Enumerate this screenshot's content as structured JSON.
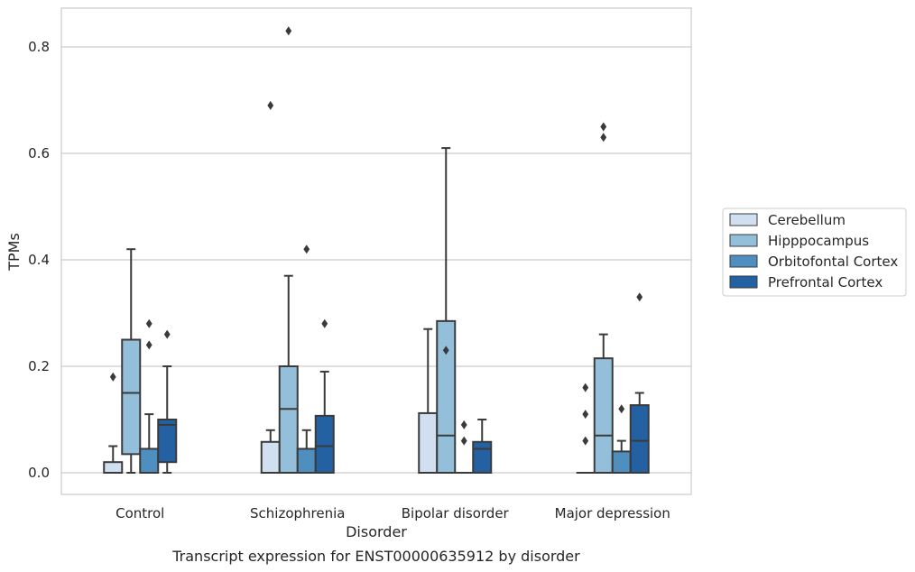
{
  "chart_data": {
    "type": "box",
    "caption": "Transcript expression for ENST00000635912 by disorder",
    "xlabel": "Disorder",
    "ylabel": "TPMs",
    "ylim": [
      -0.04,
      0.875
    ],
    "yticks": [
      0.0,
      0.2,
      0.4,
      0.6,
      0.8
    ],
    "ytick_labels": [
      "0.0",
      "0.2",
      "0.4",
      "0.6",
      "0.8"
    ],
    "grid": "horizontal",
    "legend_position": "right",
    "categories": [
      "Control",
      "Schizophrenia",
      "Bipolar disorder",
      "Major depression"
    ],
    "series": [
      {
        "name": "Cerebellum",
        "color": "#d1e0f0",
        "boxes": [
          {
            "whislo": 0.0,
            "q1": 0.0,
            "med": 0.0,
            "q3": 0.02,
            "whishi": 0.05,
            "fliers": [
              0.18
            ]
          },
          {
            "whislo": 0.0,
            "q1": 0.0,
            "med": 0.0,
            "q3": 0.058,
            "whishi": 0.08,
            "fliers": [
              0.69
            ]
          },
          {
            "whislo": 0.0,
            "q1": 0.0,
            "med": 0.0,
            "q3": 0.112,
            "whishi": 0.27,
            "fliers": []
          },
          {
            "whislo": 0.0,
            "q1": 0.0,
            "med": 0.0,
            "q3": 0.0,
            "whishi": 0.0,
            "fliers": [
              0.16,
              0.11,
              0.06
            ]
          }
        ]
      },
      {
        "name": "Hipppocampus",
        "color": "#94bfdb",
        "boxes": [
          {
            "whislo": 0.0,
            "q1": 0.035,
            "med": 0.15,
            "q3": 0.25,
            "whishi": 0.42,
            "fliers": []
          },
          {
            "whislo": 0.0,
            "q1": 0.0,
            "med": 0.12,
            "q3": 0.2,
            "whishi": 0.37,
            "fliers": [
              0.83
            ]
          },
          {
            "whislo": 0.0,
            "q1": 0.0,
            "med": 0.07,
            "q3": 0.285,
            "whishi": 0.61,
            "fliers": [
              0.23
            ]
          },
          {
            "whislo": 0.0,
            "q1": 0.0,
            "med": 0.07,
            "q3": 0.215,
            "whishi": 0.26,
            "fliers": [
              0.65,
              0.63
            ]
          }
        ]
      },
      {
        "name": "Orbitofontal Cortex",
        "color": "#4e8fc0",
        "boxes": [
          {
            "whislo": 0.0,
            "q1": 0.0,
            "med": 0.0,
            "q3": 0.045,
            "whishi": 0.11,
            "fliers": [
              0.28,
              0.24
            ]
          },
          {
            "whislo": 0.0,
            "q1": 0.0,
            "med": 0.0,
            "q3": 0.045,
            "whishi": 0.08,
            "fliers": [
              0.42
            ]
          },
          {
            "whislo": 0.0,
            "q1": 0.0,
            "med": 0.0,
            "q3": 0.0,
            "whishi": 0.0,
            "fliers": [
              0.09,
              0.06
            ]
          },
          {
            "whislo": 0.0,
            "q1": 0.0,
            "med": 0.0,
            "q3": 0.04,
            "whishi": 0.06,
            "fliers": [
              0.12
            ]
          }
        ]
      },
      {
        "name": "Prefrontal Cortex",
        "color": "#2461a3",
        "boxes": [
          {
            "whislo": 0.0,
            "q1": 0.02,
            "med": 0.09,
            "q3": 0.1,
            "whishi": 0.2,
            "fliers": [
              0.26
            ]
          },
          {
            "whislo": 0.0,
            "q1": 0.0,
            "med": 0.05,
            "q3": 0.107,
            "whishi": 0.19,
            "fliers": [
              0.28
            ]
          },
          {
            "whislo": 0.0,
            "q1": 0.0,
            "med": 0.045,
            "q3": 0.058,
            "whishi": 0.1,
            "fliers": []
          },
          {
            "whislo": 0.0,
            "q1": 0.0,
            "med": 0.06,
            "q3": 0.127,
            "whishi": 0.15,
            "fliers": [
              0.33
            ]
          }
        ]
      }
    ]
  }
}
